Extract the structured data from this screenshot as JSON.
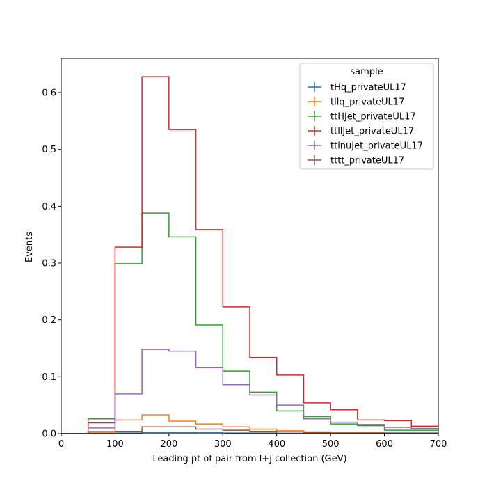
{
  "chart_data": {
    "type": "step",
    "xlabel": "Leading pt of pair from l+j collection (GeV)",
    "ylabel": "Events",
    "xlim": [
      0,
      700
    ],
    "ylim": [
      0,
      0.66
    ],
    "xticks": [
      "0",
      "100",
      "200",
      "300",
      "400",
      "500",
      "600",
      "700"
    ],
    "yticks": [
      "0.0",
      "0.1",
      "0.2",
      "0.3",
      "0.4",
      "0.5",
      "0.6"
    ],
    "grid": false,
    "legend_title": "sample",
    "legend_position": "top-right",
    "bin_edges": [
      0,
      50,
      100,
      150,
      200,
      250,
      300,
      350,
      400,
      450,
      500,
      550,
      600,
      650,
      700
    ],
    "series": [
      {
        "name": "tHq_privateUL17",
        "color": "#1f77b4",
        "values": [
          0,
          0,
          0.001,
          0.002,
          0.002,
          0.002,
          0.001,
          0.001,
          0.0005,
          0.0003,
          0.0002,
          0.0001,
          0.0001,
          0.0001
        ]
      },
      {
        "name": "tllq_privateUL17",
        "color": "#ff7f0e",
        "values": [
          0,
          0.004,
          0.024,
          0.033,
          0.022,
          0.017,
          0.012,
          0.008,
          0.005,
          0.003,
          0.002,
          0.002,
          0.001,
          0.001
        ]
      },
      {
        "name": "ttHJet_privateUL17",
        "color": "#2ca02c",
        "values": [
          0,
          0.026,
          0.299,
          0.388,
          0.346,
          0.191,
          0.11,
          0.073,
          0.04,
          0.03,
          0.017,
          0.014,
          0.006,
          0.006
        ]
      },
      {
        "name": "ttllJet_privateUL17",
        "color": "#d62728",
        "values": [
          0,
          0.019,
          0.328,
          0.628,
          0.535,
          0.359,
          0.223,
          0.134,
          0.103,
          0.054,
          0.042,
          0.024,
          0.023,
          0.013
        ]
      },
      {
        "name": "ttlnuJet_privateUL17",
        "color": "#9467bd",
        "values": [
          0,
          0.01,
          0.07,
          0.148,
          0.145,
          0.116,
          0.086,
          0.068,
          0.05,
          0.026,
          0.02,
          0.016,
          0.011,
          0.009
        ]
      },
      {
        "name": "tttt_privateUL17",
        "color": "#8c564b",
        "values": [
          0,
          0.001,
          0.004,
          0.012,
          0.012,
          0.008,
          0.006,
          0.004,
          0.003,
          0.002,
          0.001,
          0.001,
          0.001,
          0.001
        ]
      }
    ]
  }
}
